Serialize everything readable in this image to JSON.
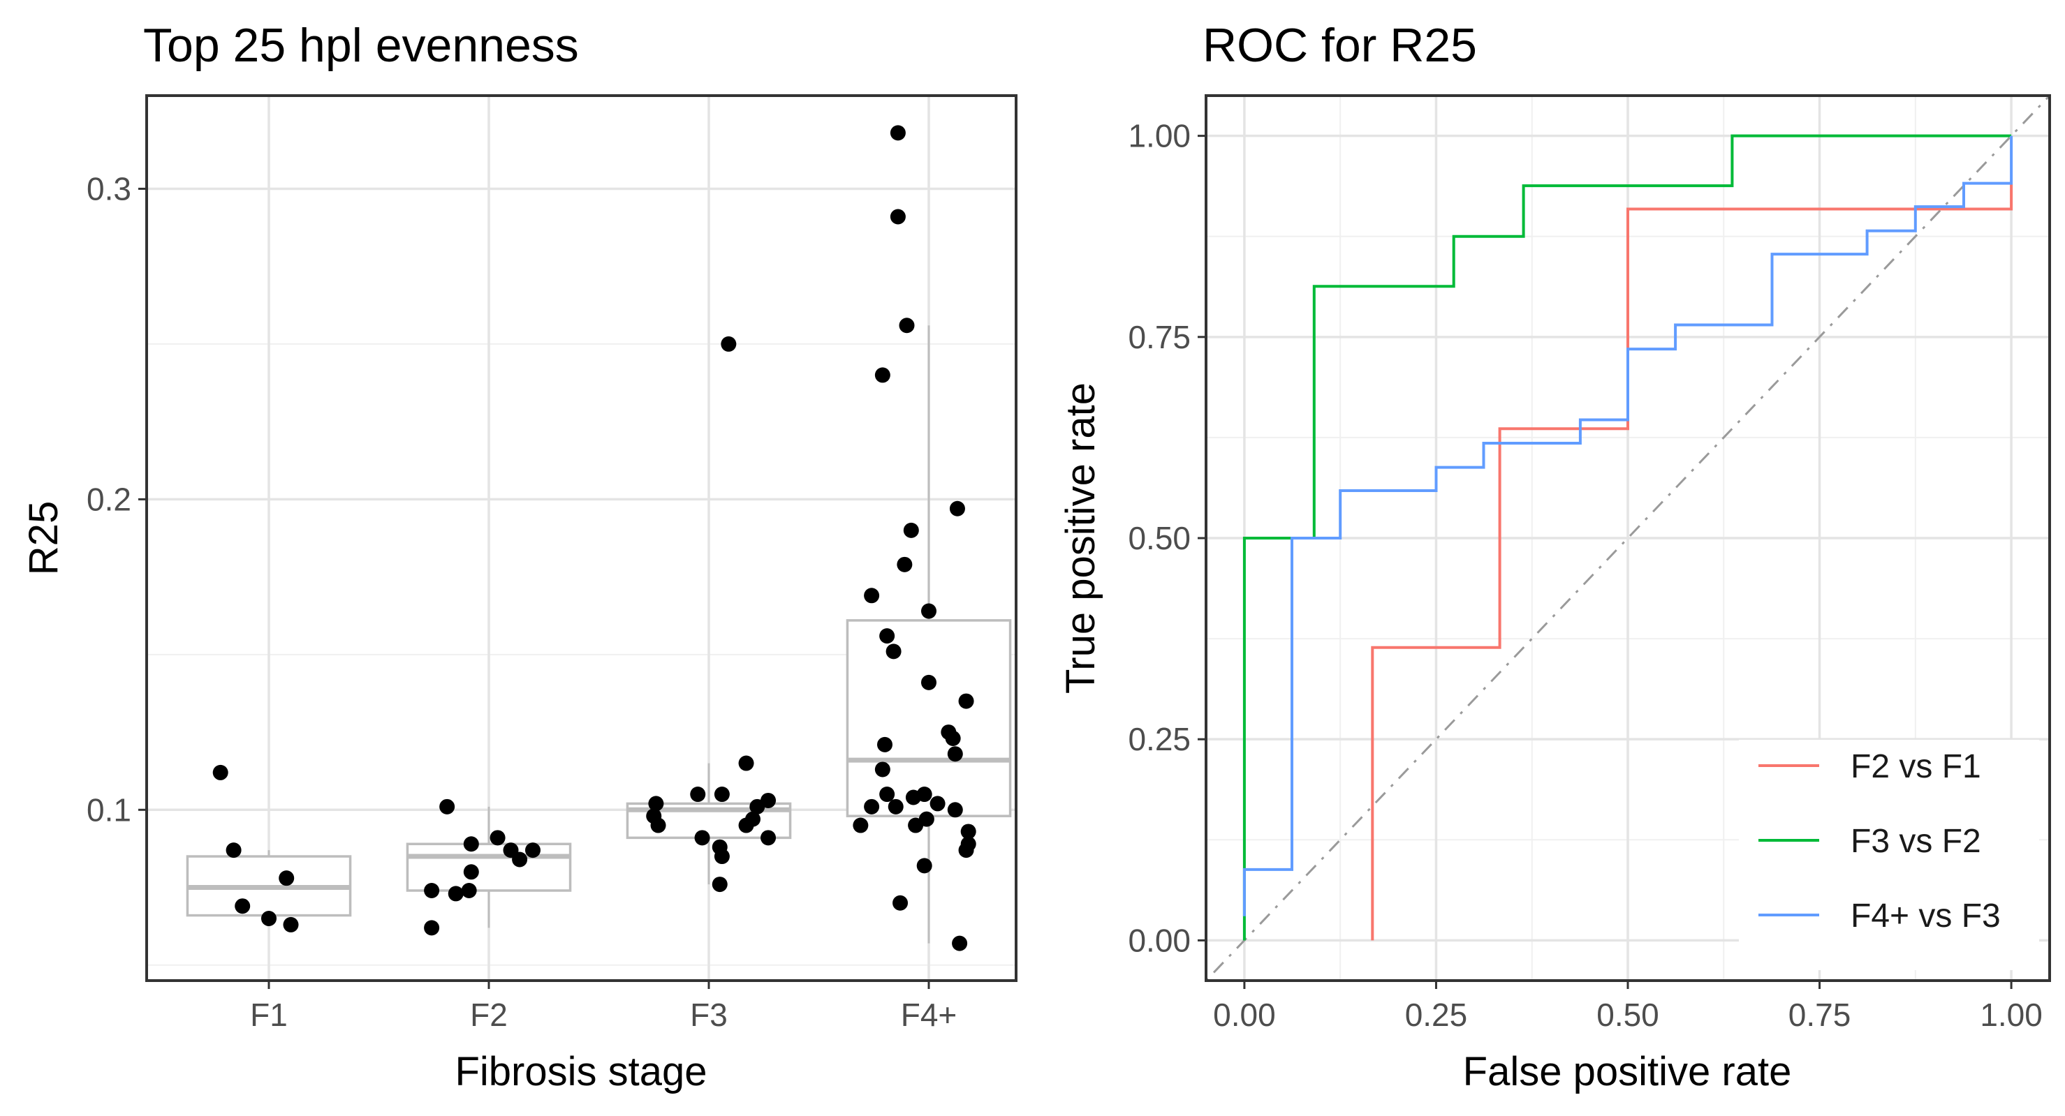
{
  "chart_data": [
    {
      "type": "box",
      "title": "Top 25 hpl evenness",
      "xlabel": "Fibrosis stage",
      "ylabel": "R25",
      "categories": [
        "F1",
        "F2",
        "F3",
        "F4+"
      ],
      "ylim": [
        0.045,
        0.33
      ],
      "yticks": [
        0.1,
        0.2,
        0.3
      ],
      "ytick_labels": [
        "0.1",
        "0.2",
        "0.3"
      ],
      "grid": true,
      "boxes": [
        {
          "category": "F1",
          "q1": 0.066,
          "median": 0.075,
          "q3": 0.085,
          "whisker_low": 0.063,
          "whisker_high": 0.087
        },
        {
          "category": "F2",
          "q1": 0.074,
          "median": 0.085,
          "q3": 0.089,
          "whisker_low": 0.062,
          "whisker_high": 0.101
        },
        {
          "category": "F3",
          "q1": 0.091,
          "median": 0.1,
          "q3": 0.102,
          "whisker_low": 0.076,
          "whisker_high": 0.115
        },
        {
          "category": "F4+",
          "q1": 0.098,
          "median": 0.116,
          "q3": 0.161,
          "whisker_low": 0.057,
          "whisker_high": 0.256
        }
      ],
      "points": [
        {
          "category": "F1",
          "jitter": -0.22,
          "value": 0.112
        },
        {
          "category": "F1",
          "jitter": -0.16,
          "value": 0.087
        },
        {
          "category": "F1",
          "jitter": 0.08,
          "value": 0.078
        },
        {
          "category": "F1",
          "jitter": -0.12,
          "value": 0.069
        },
        {
          "category": "F1",
          "jitter": 0.0,
          "value": 0.065
        },
        {
          "category": "F1",
          "jitter": 0.1,
          "value": 0.063
        },
        {
          "category": "F2",
          "jitter": -0.19,
          "value": 0.101
        },
        {
          "category": "F2",
          "jitter": -0.08,
          "value": 0.089
        },
        {
          "category": "F2",
          "jitter": 0.04,
          "value": 0.091
        },
        {
          "category": "F2",
          "jitter": 0.2,
          "value": 0.087
        },
        {
          "category": "F2",
          "jitter": 0.1,
          "value": 0.087
        },
        {
          "category": "F2",
          "jitter": 0.14,
          "value": 0.084
        },
        {
          "category": "F2",
          "jitter": -0.08,
          "value": 0.08
        },
        {
          "category": "F2",
          "jitter": -0.26,
          "value": 0.074
        },
        {
          "category": "F2",
          "jitter": -0.15,
          "value": 0.073
        },
        {
          "category": "F2",
          "jitter": -0.09,
          "value": 0.074
        },
        {
          "category": "F2",
          "jitter": -0.26,
          "value": 0.062
        },
        {
          "category": "F3",
          "jitter": 0.09,
          "value": 0.25
        },
        {
          "category": "F3",
          "jitter": 0.17,
          "value": 0.115
        },
        {
          "category": "F3",
          "jitter": -0.05,
          "value": 0.105
        },
        {
          "category": "F3",
          "jitter": 0.06,
          "value": 0.105
        },
        {
          "category": "F3",
          "jitter": 0.27,
          "value": 0.103
        },
        {
          "category": "F3",
          "jitter": -0.24,
          "value": 0.102
        },
        {
          "category": "F3",
          "jitter": 0.22,
          "value": 0.101
        },
        {
          "category": "F3",
          "jitter": -0.25,
          "value": 0.098
        },
        {
          "category": "F3",
          "jitter": 0.2,
          "value": 0.097
        },
        {
          "category": "F3",
          "jitter": -0.23,
          "value": 0.095
        },
        {
          "category": "F3",
          "jitter": 0.17,
          "value": 0.095
        },
        {
          "category": "F3",
          "jitter": 0.27,
          "value": 0.091
        },
        {
          "category": "F3",
          "jitter": -0.03,
          "value": 0.091
        },
        {
          "category": "F3",
          "jitter": 0.05,
          "value": 0.088
        },
        {
          "category": "F3",
          "jitter": 0.06,
          "value": 0.085
        },
        {
          "category": "F3",
          "jitter": 0.05,
          "value": 0.076
        },
        {
          "category": "F4+",
          "jitter": -0.14,
          "value": 0.318
        },
        {
          "category": "F4+",
          "jitter": -0.14,
          "value": 0.291
        },
        {
          "category": "F4+",
          "jitter": -0.1,
          "value": 0.256
        },
        {
          "category": "F4+",
          "jitter": -0.21,
          "value": 0.24
        },
        {
          "category": "F4+",
          "jitter": 0.13,
          "value": 0.197
        },
        {
          "category": "F4+",
          "jitter": -0.08,
          "value": 0.19
        },
        {
          "category": "F4+",
          "jitter": -0.11,
          "value": 0.179
        },
        {
          "category": "F4+",
          "jitter": -0.26,
          "value": 0.169
        },
        {
          "category": "F4+",
          "jitter": 0.0,
          "value": 0.164
        },
        {
          "category": "F4+",
          "jitter": -0.19,
          "value": 0.156
        },
        {
          "category": "F4+",
          "jitter": -0.16,
          "value": 0.151
        },
        {
          "category": "F4+",
          "jitter": 0.0,
          "value": 0.141
        },
        {
          "category": "F4+",
          "jitter": 0.17,
          "value": 0.135
        },
        {
          "category": "F4+",
          "jitter": 0.09,
          "value": 0.125
        },
        {
          "category": "F4+",
          "jitter": 0.11,
          "value": 0.123
        },
        {
          "category": "F4+",
          "jitter": -0.2,
          "value": 0.121
        },
        {
          "category": "F4+",
          "jitter": -0.21,
          "value": 0.113
        },
        {
          "category": "F4+",
          "jitter": 0.12,
          "value": 0.118
        },
        {
          "category": "F4+",
          "jitter": -0.19,
          "value": 0.105
        },
        {
          "category": "F4+",
          "jitter": -0.02,
          "value": 0.105
        },
        {
          "category": "F4+",
          "jitter": -0.07,
          "value": 0.104
        },
        {
          "category": "F4+",
          "jitter": 0.04,
          "value": 0.102
        },
        {
          "category": "F4+",
          "jitter": -0.26,
          "value": 0.101
        },
        {
          "category": "F4+",
          "jitter": -0.15,
          "value": 0.101
        },
        {
          "category": "F4+",
          "jitter": 0.12,
          "value": 0.1
        },
        {
          "category": "F4+",
          "jitter": -0.31,
          "value": 0.095
        },
        {
          "category": "F4+",
          "jitter": -0.06,
          "value": 0.095
        },
        {
          "category": "F4+",
          "jitter": -0.01,
          "value": 0.097
        },
        {
          "category": "F4+",
          "jitter": 0.18,
          "value": 0.093
        },
        {
          "category": "F4+",
          "jitter": 0.18,
          "value": 0.089
        },
        {
          "category": "F4+",
          "jitter": 0.17,
          "value": 0.087
        },
        {
          "category": "F4+",
          "jitter": -0.02,
          "value": 0.082
        },
        {
          "category": "F4+",
          "jitter": -0.13,
          "value": 0.07
        },
        {
          "category": "F4+",
          "jitter": 0.14,
          "value": 0.057
        }
      ]
    },
    {
      "type": "line",
      "subtype": "step",
      "title": "ROC for R25",
      "xlabel": "False positive rate",
      "ylabel": "True positive rate",
      "xlim": [
        -0.05,
        1.05
      ],
      "ylim": [
        -0.05,
        1.05
      ],
      "xticks": [
        0,
        0.25,
        0.5,
        0.75,
        1.0
      ],
      "yticks": [
        0,
        0.25,
        0.5,
        0.75,
        1.0
      ],
      "xtick_labels": [
        "0.00",
        "0.25",
        "0.50",
        "0.75",
        "1.00"
      ],
      "ytick_labels": [
        "0.00",
        "0.25",
        "0.50",
        "0.75",
        "1.00"
      ],
      "grid": true,
      "diagonal_reference": true,
      "legend_position": "bottom-right",
      "series": [
        {
          "name": "F2 vs F1",
          "color": "#F8766D",
          "x": [
            0.167,
            0.167,
            0.333,
            0.333,
            0.5,
            0.5,
            1.0,
            1.0
          ],
          "y": [
            0.0,
            0.364,
            0.364,
            0.636,
            0.636,
            0.909,
            0.909,
            0.94
          ]
        },
        {
          "name": "F3 vs F2",
          "color": "#00BA38",
          "x": [
            0.0,
            0.0,
            0.091,
            0.091,
            0.273,
            0.273,
            0.364,
            0.364,
            0.636,
            0.636,
            1.0
          ],
          "y": [
            0.0,
            0.5,
            0.5,
            0.813,
            0.813,
            0.875,
            0.875,
            0.938,
            0.938,
            1.0,
            1.0
          ]
        },
        {
          "name": "F4+ vs F3",
          "color": "#619CFF",
          "x": [
            0.0,
            0.0,
            0.062,
            0.062,
            0.125,
            0.125,
            0.25,
            0.25,
            0.312,
            0.312,
            0.438,
            0.438,
            0.5,
            0.5,
            0.562,
            0.562,
            0.688,
            0.688,
            0.812,
            0.812,
            0.875,
            0.875,
            0.938,
            0.938,
            1.0,
            1.0
          ],
          "y": [
            0.03,
            0.088,
            0.088,
            0.5,
            0.5,
            0.559,
            0.559,
            0.588,
            0.588,
            0.618,
            0.618,
            0.647,
            0.647,
            0.735,
            0.735,
            0.765,
            0.765,
            0.853,
            0.853,
            0.882,
            0.882,
            0.912,
            0.912,
            0.941,
            0.941,
            1.0
          ]
        }
      ]
    }
  ]
}
